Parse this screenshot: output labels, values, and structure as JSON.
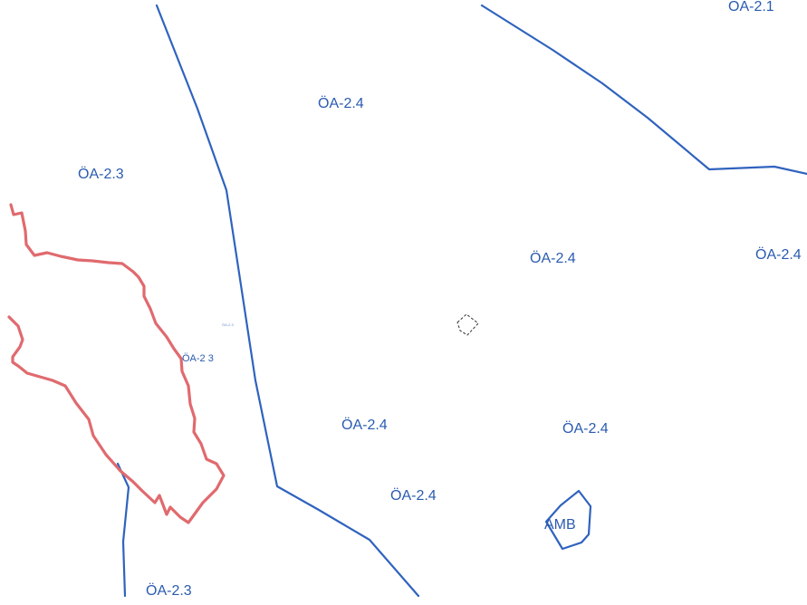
{
  "map": {
    "labels": {
      "oa21_top": "ÖA-2.1",
      "oa24_north": "ÖA-2.4",
      "oa23_west": "ÖA-2.3",
      "oa24_center": "ÖA-2.4",
      "oa24_east": "ÖA-2.4",
      "oa23_small": "ÖA-2 3",
      "oa23_tiny": "ÖA-2.3",
      "oa24_south_left": "ÖA-2.4",
      "oa24_south_right": "ÖA-2.4",
      "oa24_bottom": "ÖA-2.4",
      "amb": "AMB",
      "oa23_bottom": "ÖA-2.3"
    },
    "colors": {
      "zone_boundary": "#2f63be",
      "highlight_boundary": "#e06a6e",
      "label": "#2a5bb0"
    }
  }
}
